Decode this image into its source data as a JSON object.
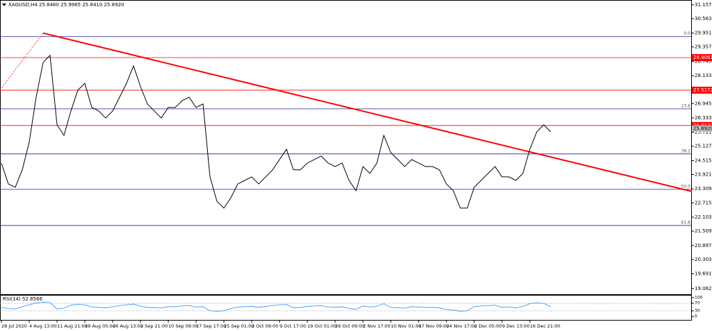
{
  "chart_data": {
    "type": "line",
    "title": "XAGUSD,H4  25.8460 25.9965 25.8410 25.8920",
    "categories": [
      "28 Jul 2020",
      null,
      null,
      null,
      "4 Aug 13:00",
      null,
      null,
      null,
      "11 Aug 21:00",
      null,
      null,
      null,
      "19 Aug 05:00",
      null,
      null,
      null,
      "26 Aug 13:00",
      null,
      null,
      null,
      "2 Sep 21:00",
      null,
      null,
      null,
      "10 Sep 09:00",
      null,
      null,
      null,
      "17 Sep 17:00",
      null,
      null,
      null,
      "25 Sep 01:00",
      null,
      null,
      null,
      "2 Oct 09:00",
      null,
      null,
      null,
      "9 Oct 17:00",
      null,
      null,
      null,
      "19 Oct 01:00",
      null,
      null,
      null,
      "26 Oct 09:00",
      null,
      null,
      null,
      "2 Nov 17:00",
      null,
      null,
      null,
      "10 Nov 01:00",
      null,
      null,
      null,
      "17 Nov 09:00",
      null,
      null,
      null,
      "24 Nov 17:00",
      null,
      null,
      null,
      "2 Dec 05:00",
      null,
      null,
      null,
      "9 Dec 13:00",
      null,
      null,
      null,
      "16 Dec 21:00",
      null,
      null,
      null
    ],
    "series": [
      {
        "color": "#000000",
        "values": [
          24.41,
          23.52,
          23.38,
          24.12,
          25.3,
          27.22,
          28.7,
          29.0,
          26.04,
          25.59,
          26.63,
          27.52,
          27.81,
          26.78,
          26.63,
          26.33,
          26.63,
          27.22,
          27.81,
          28.55,
          27.67,
          26.93,
          26.63,
          26.33,
          26.78,
          26.78,
          27.07,
          27.22,
          26.78,
          26.93,
          23.82,
          22.78,
          22.49,
          22.93,
          23.52,
          23.67,
          23.82,
          23.52,
          23.82,
          24.12,
          24.56,
          25.0,
          24.12,
          24.12,
          24.41,
          24.56,
          24.71,
          24.41,
          24.26,
          24.41,
          23.67,
          23.23,
          24.26,
          23.97,
          24.41,
          25.59,
          24.86,
          24.56,
          24.26,
          24.56,
          24.41,
          24.26,
          24.26,
          24.12,
          23.52,
          23.23,
          22.49,
          22.49,
          23.38,
          23.67,
          23.97,
          24.26,
          23.82,
          23.82,
          23.67,
          23.97,
          25.0,
          25.74,
          26.04,
          25.74
        ]
      }
    ],
    "ylim": [
      18.79,
      31.36
    ],
    "yticks": [
      {
        "value": 31.157,
        "label": "31.1570"
      },
      {
        "value": 30.563,
        "label": "30.5630"
      },
      {
        "value": 29.951,
        "label": "29.9510"
      },
      {
        "value": 29.357,
        "label": "29.3570"
      },
      {
        "value": 28.745,
        "label": "28.7450"
      },
      {
        "value": 28.133,
        "label": "28.1330"
      },
      {
        "value": 27.539,
        "label": "27.5390"
      },
      {
        "value": 26.945,
        "label": "26.9450"
      },
      {
        "value": 26.333,
        "label": "26.3330"
      },
      {
        "value": 25.721,
        "label": "25.7210"
      },
      {
        "value": 25.127,
        "label": "25.1270"
      },
      {
        "value": 24.515,
        "label": "24.5150"
      },
      {
        "value": 23.921,
        "label": "23.9210"
      },
      {
        "value": 23.309,
        "label": "23.3090"
      },
      {
        "value": 22.715,
        "label": "22.7150"
      },
      {
        "value": 22.103,
        "label": "22.1030"
      },
      {
        "value": 21.509,
        "label": "21.5090"
      },
      {
        "value": 20.897,
        "label": "20.8970"
      },
      {
        "value": 20.303,
        "label": "20.3030"
      },
      {
        "value": 19.691,
        "label": "19.6910"
      },
      {
        "value": 19.062,
        "label": "19.0620"
      }
    ],
    "levels": [
      {
        "label": "0.0",
        "value": 29.8,
        "color": "#1c1c9c"
      },
      {
        "label": "23.6",
        "value": 26.72,
        "color": "#1c1c9c"
      },
      {
        "label": "38.2",
        "value": 24.8,
        "color": "#1c1c9c"
      },
      {
        "label": "50.0",
        "value": 23.29,
        "color": "#1c1c9c"
      },
      {
        "label": "61.8",
        "value": 21.75,
        "color": "#1c1c9c"
      }
    ],
    "price_lines": [
      {
        "value": 28.9061,
        "color": "#ff0000"
      },
      {
        "value": 27.5172,
        "color": "#ff0000"
      },
      {
        "value": 26.0122,
        "color": "#ff0000"
      }
    ],
    "current_price": {
      "value": 25.892,
      "label": "25.8920"
    },
    "trend_line": {
      "x": [
        6,
        99.3
      ],
      "values": [
        29.95,
        23.2
      ],
      "color": "#ff0000"
    },
    "trend_extension": {
      "x": [
        -0.2,
        6
      ],
      "values": [
        27.52,
        29.95
      ],
      "color": "#ff0000"
    },
    "rsi": {
      "title": "RSI(14) 52.8566",
      "color": "#1e90ff",
      "ylim": [
        0,
        100
      ],
      "yticks": [
        100,
        70,
        30,
        0
      ],
      "levels": [
        70,
        30
      ],
      "values": [
        48,
        42,
        40,
        52,
        62,
        72,
        76,
        74,
        40,
        45,
        60,
        65,
        62,
        50,
        48,
        46,
        52,
        58,
        62,
        66,
        55,
        48,
        46,
        45,
        52,
        52,
        56,
        58,
        50,
        52,
        30,
        28,
        30,
        42,
        50,
        52,
        54,
        48,
        54,
        58,
        62,
        64,
        46,
        48,
        54,
        56,
        58,
        50,
        48,
        52,
        42,
        38,
        56,
        50,
        54,
        68,
        48,
        46,
        44,
        52,
        50,
        48,
        48,
        46,
        36,
        34,
        28,
        30,
        52,
        56,
        58,
        60,
        48,
        50,
        46,
        54,
        68,
        72,
        70,
        52
      ]
    }
  }
}
